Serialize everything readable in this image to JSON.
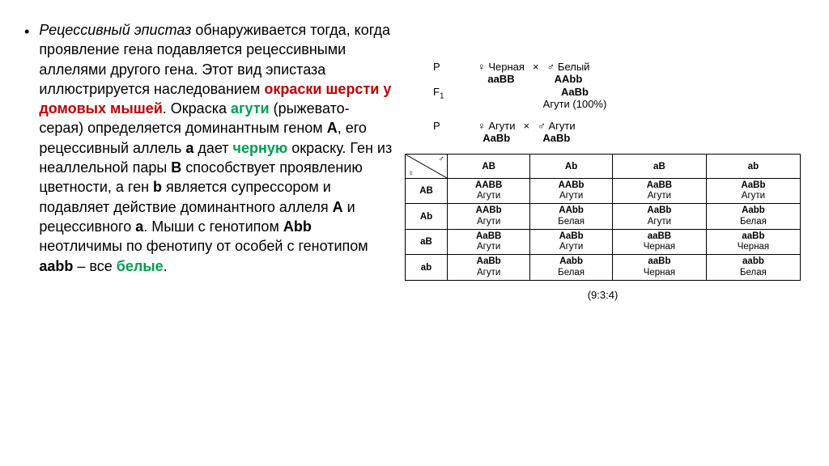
{
  "left": {
    "p0": "Рецессивный эпистаз",
    "p1": " обнаруживается тогда, когда проявление гена подавляется рецессивными аллелями другого гена. Этот вид эпистаза иллюстрируется наследованием ",
    "p2": "окраски шерсти у домовых мышей",
    "p3": ". Окраска ",
    "p4": "агути",
    "p5": " (рыжевато-серая) определяется доминантным геном ",
    "p6": "А",
    "p7": ", его рецессивный аллель ",
    "p8": "а",
    "p9": " дает ",
    "p10": "черную",
    "p11": " окраску. Ген из неаллельной пары ",
    "p12": "В",
    "p13": " способствует проявлению цветности, а ген ",
    "p14": "b",
    "p15": " является супрессором и подавляет действие доминантного аллеля ",
    "p16": "А",
    "p17": " и рецессивного ",
    "p18": "а",
    "p19": ". Мыши с генотипом ",
    "p20": "Аbb",
    "p21": " неотличимы по фенотипу от особей с генотипом ",
    "p22": "ааbb",
    "p23": " – все ",
    "p24": "белые",
    "p25": "."
  },
  "cross1": {
    "P": "P",
    "female_sym": "♀",
    "male_sym": "♂",
    "f_pheno": "Черная",
    "f_geno": "aaBB",
    "x": "×",
    "m_pheno": "Белый",
    "m_geno": "AAbb",
    "F1": "F",
    "F1sub": "1",
    "f1_geno": "AaBb",
    "f1_pheno": "Агути (100%)"
  },
  "cross2": {
    "P": "P",
    "f_pheno": "Агути",
    "f_geno": "AaBb",
    "m_pheno": "Агути",
    "m_geno": "AaBb"
  },
  "punnett": {
    "headers": [
      "AB",
      "Ab",
      "aB",
      "ab"
    ],
    "rows": [
      {
        "h": "AB",
        "cells": [
          {
            "g": "AABB",
            "p": "Агути"
          },
          {
            "g": "AABb",
            "p": "Агути"
          },
          {
            "g": "AaBB",
            "p": "Агути"
          },
          {
            "g": "AaBb",
            "p": "Агути"
          }
        ]
      },
      {
        "h": "Ab",
        "cells": [
          {
            "g": "AABb",
            "p": "Агути"
          },
          {
            "g": "AAbb",
            "p": "Белая"
          },
          {
            "g": "AaBb",
            "p": "Агути"
          },
          {
            "g": "Aabb",
            "p": "Белая"
          }
        ]
      },
      {
        "h": "aB",
        "cells": [
          {
            "g": "AaBB",
            "p": "Агути"
          },
          {
            "g": "AaBb",
            "p": "Агути"
          },
          {
            "g": "aaBB",
            "p": "Черная"
          },
          {
            "g": "aaBb",
            "p": "Черная"
          }
        ]
      },
      {
        "h": "ab",
        "cells": [
          {
            "g": "AaBb",
            "p": "Агути"
          },
          {
            "g": "Aabb",
            "p": "Белая"
          },
          {
            "g": "aaBb",
            "p": "Черная"
          },
          {
            "g": "aabb",
            "p": "Белая"
          }
        ]
      }
    ]
  },
  "ratio": "(9:3:4)"
}
